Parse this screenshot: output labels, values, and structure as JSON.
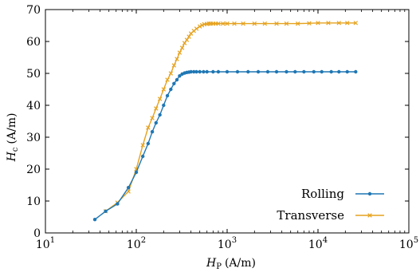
{
  "chart_data": {
    "type": "line",
    "x_scale": "log",
    "xlim": [
      10,
      100000
    ],
    "ylim": [
      0,
      70
    ],
    "x_ticks": [
      {
        "value": 10,
        "base": "10",
        "exp": "1"
      },
      {
        "value": 100,
        "base": "10",
        "exp": "2"
      },
      {
        "value": 1000,
        "base": "10",
        "exp": "3"
      },
      {
        "value": 10000,
        "base": "10",
        "exp": "4"
      },
      {
        "value": 100000,
        "base": "10",
        "exp": "5"
      }
    ],
    "y_ticks": [
      0,
      10,
      20,
      30,
      40,
      50,
      60,
      70
    ],
    "xlabel": {
      "var": "H",
      "sub": "P",
      "unit": "(A/m)"
    },
    "ylabel": {
      "var": "H",
      "sub": "c",
      "unit": "(A/m)"
    },
    "legend_position": "lower-right",
    "grid": false,
    "series": [
      {
        "name": "Rolling",
        "color": "#1f77b4",
        "marker": "dot",
        "x": [
          35,
          46,
          62,
          82,
          100,
          118,
          135,
          150,
          165,
          182,
          200,
          220,
          240,
          260,
          280,
          300,
          320,
          340,
          360,
          380,
          400,
          430,
          460,
          500,
          550,
          600,
          700,
          800,
          1000,
          1300,
          1700,
          2200,
          2800,
          3500,
          4500,
          5600,
          7000,
          9000,
          11000,
          14000,
          17000,
          21000,
          26000
        ],
        "y": [
          4.2,
          6.8,
          9.1,
          14.2,
          19.0,
          24.0,
          28.0,
          31.7,
          34.5,
          37.0,
          40.0,
          43.0,
          45.0,
          46.8,
          48.0,
          49.2,
          49.8,
          50.1,
          50.3,
          50.4,
          50.5,
          50.5,
          50.5,
          50.5,
          50.5,
          50.5,
          50.5,
          50.5,
          50.5,
          50.5,
          50.5,
          50.5,
          50.5,
          50.5,
          50.5,
          50.5,
          50.5,
          50.5,
          50.5,
          50.5,
          50.5,
          50.5,
          50.5
        ]
      },
      {
        "name": "Transverse",
        "color": "#e6a21e",
        "marker": "x",
        "x": [
          46,
          62,
          82,
          100,
          118,
          135,
          150,
          165,
          182,
          200,
          220,
          240,
          260,
          280,
          300,
          320,
          340,
          360,
          380,
          400,
          430,
          460,
          500,
          530,
          560,
          600,
          630,
          660,
          700,
          750,
          800,
          900,
          1000,
          1200,
          1500,
          2000,
          2600,
          3500,
          4500,
          6000,
          8000,
          10000,
          13000,
          17000,
          21000,
          26000
        ],
        "y": [
          6.8,
          9.5,
          13.0,
          20.0,
          27.5,
          33.0,
          36.0,
          39.0,
          42.0,
          45.0,
          48.0,
          50.0,
          52.5,
          54.5,
          56.5,
          58.0,
          59.5,
          60.5,
          61.5,
          62.5,
          63.3,
          64.0,
          64.7,
          65.1,
          65.4,
          65.5,
          65.6,
          65.6,
          65.6,
          65.6,
          65.6,
          65.6,
          65.6,
          65.6,
          65.6,
          65.6,
          65.6,
          65.6,
          65.6,
          65.6,
          65.7,
          65.8,
          65.8,
          65.8,
          65.8,
          65.8
        ]
      }
    ]
  }
}
